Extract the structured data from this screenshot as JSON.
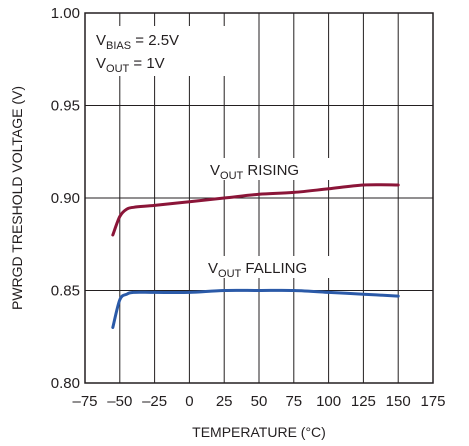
{
  "chart_data": {
    "type": "line",
    "title": "",
    "xlabel": "TEMPERATURE (°C)",
    "ylabel": "PWRGD TRESHOLD VOLTAGE (V)",
    "xlim": [
      -75,
      175
    ],
    "ylim": [
      0.8,
      1.0
    ],
    "x_ticks": [
      -75,
      -50,
      -25,
      0,
      25,
      50,
      75,
      100,
      125,
      150,
      175
    ],
    "x_tick_labels": [
      "–75",
      "–50",
      "–25",
      "0",
      "25",
      "50",
      "75",
      "100",
      "125",
      "150",
      "175"
    ],
    "y_ticks": [
      0.8,
      0.85,
      0.9,
      0.95,
      1.0
    ],
    "y_tick_labels": [
      "0.80",
      "0.85",
      "0.90",
      "0.95",
      "1.00"
    ],
    "grid": true,
    "series": [
      {
        "name": "VOUT RISING",
        "color": "#8b1538",
        "x": [
          -55,
          -50,
          -45,
          -40,
          -25,
          0,
          25,
          50,
          75,
          100,
          125,
          150
        ],
        "y": [
          0.88,
          0.89,
          0.894,
          0.895,
          0.896,
          0.898,
          0.9,
          0.902,
          0.903,
          0.905,
          0.907,
          0.907
        ]
      },
      {
        "name": "VOUT FALLING",
        "color": "#2b5aa8",
        "x": [
          -55,
          -50,
          -45,
          -40,
          -25,
          0,
          25,
          50,
          75,
          100,
          125,
          150
        ],
        "y": [
          0.83,
          0.845,
          0.848,
          0.849,
          0.849,
          0.849,
          0.85,
          0.85,
          0.85,
          0.849,
          0.848,
          0.847
        ]
      }
    ],
    "annotations": {
      "bias": {
        "main": "V",
        "sub": "BIAS",
        "rest": " = 2.5V"
      },
      "vout": {
        "main": "V",
        "sub": "OUT",
        "rest": " = 1V"
      },
      "rising": {
        "main": "V",
        "sub": "OUT",
        "rest": " RISING"
      },
      "falling": {
        "main": "V",
        "sub": "OUT",
        "rest": " FALLING"
      }
    }
  }
}
